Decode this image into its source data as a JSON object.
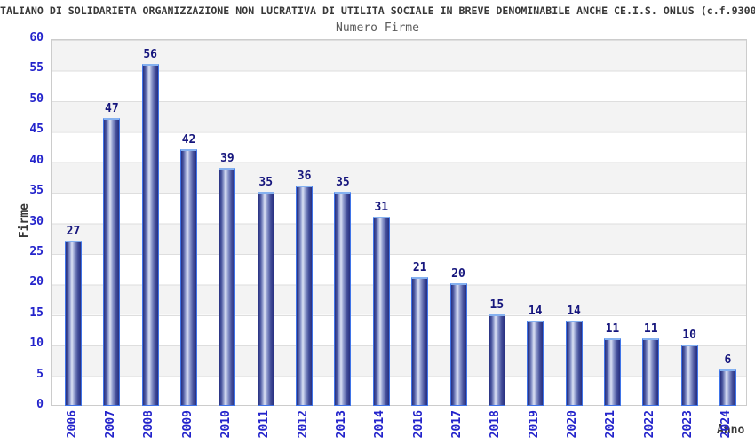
{
  "header": {
    "title": "TALIANO DI SOLIDARIETA ORGANIZZAZIONE NON LUCRATIVA DI UTILITA SOCIALE IN BREVE DENOMINABILE ANCHE CE.I.S. ONLUS (c.f.9300",
    "subtitle": "Numero Firme"
  },
  "chart_data": {
    "type": "bar",
    "title": "Numero Firme",
    "xlabel": "Anno",
    "ylabel": "Firme",
    "categories": [
      "2006",
      "2007",
      "2008",
      "2009",
      "2010",
      "2011",
      "2012",
      "2013",
      "2014",
      "2016",
      "2017",
      "2018",
      "2019",
      "2020",
      "2021",
      "2022",
      "2023",
      "2024"
    ],
    "values": [
      27,
      47,
      56,
      42,
      39,
      35,
      36,
      35,
      31,
      21,
      20,
      15,
      14,
      14,
      11,
      11,
      10,
      6
    ],
    "ylim": [
      0,
      60
    ],
    "ytick_step": 5,
    "yticks": [
      0,
      5,
      10,
      15,
      20,
      25,
      30,
      35,
      40,
      45,
      50,
      55,
      60
    ],
    "grid": "alternating-horizontal-bands",
    "legend": "none",
    "bar_value_labels": true,
    "xtick_rotation_deg": 90,
    "colors": {
      "background": "#ffffff",
      "band_fill": "#f3f3f3",
      "grid_line": "#dedede",
      "plot_border": "#cccccc",
      "axis_text": "#2323cb",
      "value_text": "#16167d",
      "title_text": "#383838",
      "subtitle_text": "#5a5a5a",
      "bar_dark": "#272f80",
      "bar_light": "#dde2f4",
      "bar_outline": "#3f74e8",
      "bar_cap": "#85b1f0"
    }
  }
}
